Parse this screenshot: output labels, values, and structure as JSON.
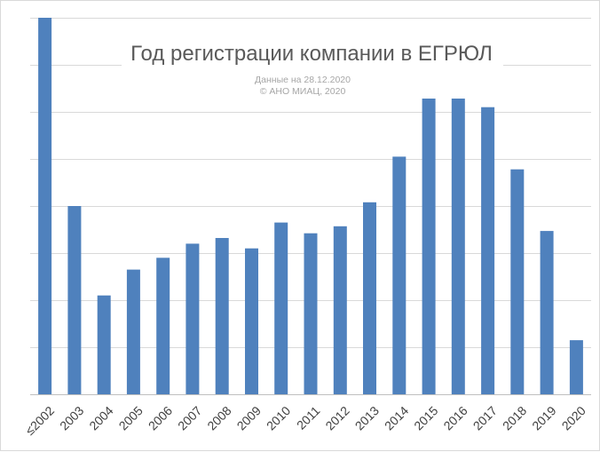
{
  "chart_data": {
    "type": "bar",
    "title": "Год регистрации компании в ЕГРЮЛ",
    "notes": [
      "Данные на 28.12.2020",
      "© АНО МИАЦ, 2020"
    ],
    "categories": [
      "≤2002",
      "2003",
      "2004",
      "2005",
      "2006",
      "2007",
      "2008",
      "2009",
      "2010",
      "2011",
      "2012",
      "2013",
      "2014",
      "2015",
      "2016",
      "2017",
      "2018",
      "2019",
      "2020"
    ],
    "values": [
      8.0,
      4.0,
      2.1,
      2.65,
      2.9,
      3.2,
      3.32,
      3.1,
      3.65,
      3.42,
      3.57,
      4.08,
      5.05,
      6.62,
      6.33,
      6.1,
      4.78,
      3.47,
      1.15
    ],
    "ylim": [
      0,
      8
    ],
    "grid": true,
    "ytick_labels_visible": false,
    "bar_color": "#4f81bd"
  }
}
